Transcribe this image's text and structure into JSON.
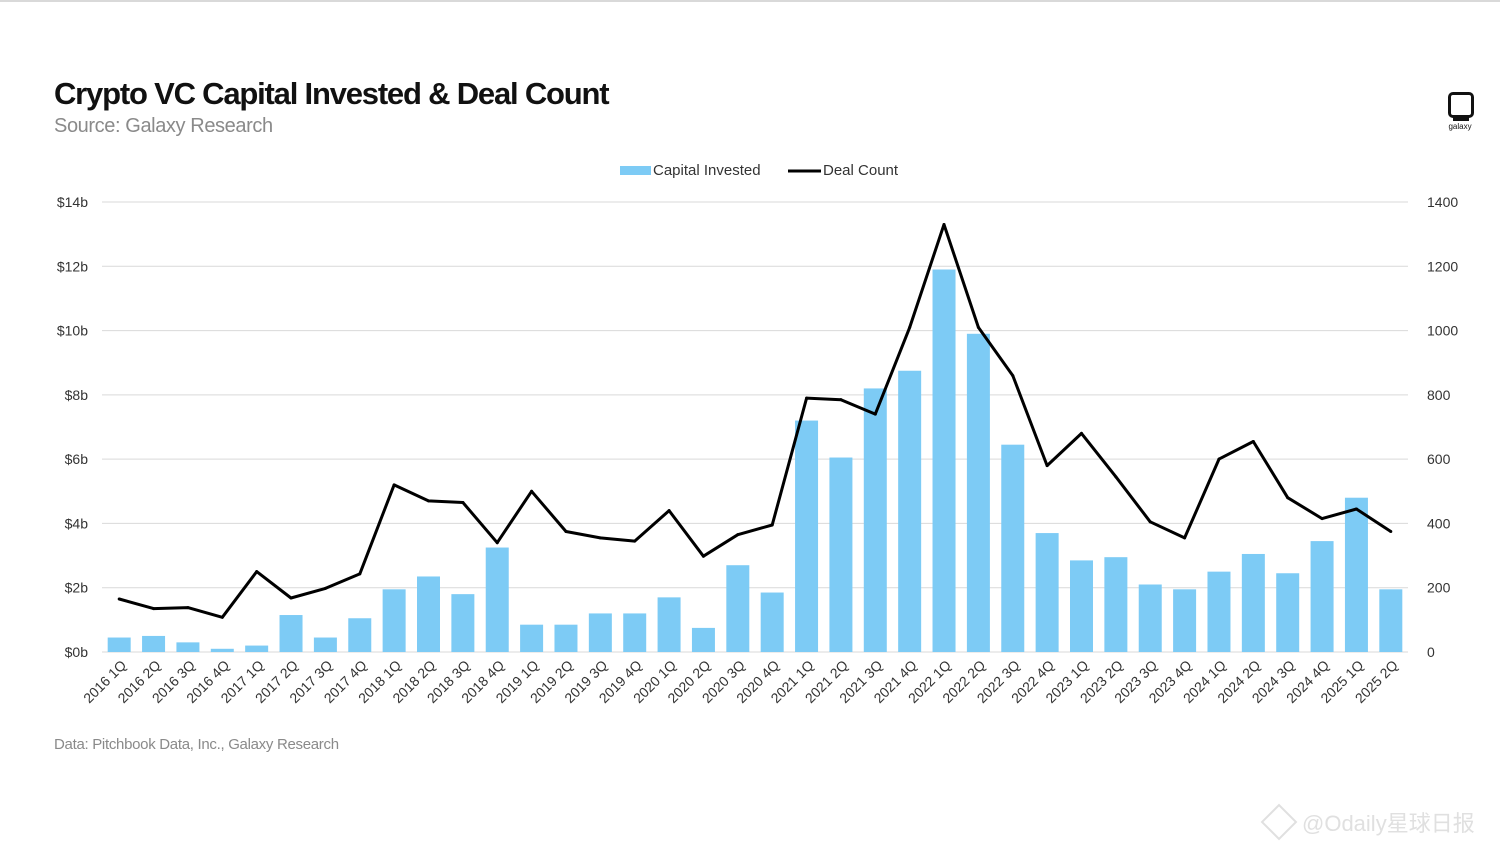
{
  "title": "Crypto VC Capital Invested & Deal Count",
  "subtitle": "Source: Galaxy Research",
  "footnote": "Data: Pitchbook Data, Inc., Galaxy Research",
  "logo": {
    "text": "galaxy",
    "icon": "galaxy-logo-icon"
  },
  "watermark": "@Odaily星球日报",
  "colors": {
    "bar": "#7dcbf5",
    "line": "#000000",
    "grid": "#d9d9d9"
  },
  "chart_data": {
    "type": "bar",
    "title": "Crypto VC Capital Invested & Deal Count",
    "legend": {
      "position": "top-center"
    },
    "grid": true,
    "categories": [
      "2016 1Q",
      "2016 2Q",
      "2016 3Q",
      "2016 4Q",
      "2017 1Q",
      "2017 2Q",
      "2017 3Q",
      "2017 4Q",
      "2018 1Q",
      "2018 2Q",
      "2018 3Q",
      "2018 4Q",
      "2019 1Q",
      "2019 2Q",
      "2019 3Q",
      "2019 4Q",
      "2020 1Q",
      "2020 2Q",
      "2020 3Q",
      "2020 4Q",
      "2021 1Q",
      "2021 2Q",
      "2021 3Q",
      "2021 4Q",
      "2022 1Q",
      "2022 2Q",
      "2022 3Q",
      "2022 4Q",
      "2023 1Q",
      "2023 2Q",
      "2023 3Q",
      "2023 4Q",
      "2024 1Q",
      "2024 2Q",
      "2024 3Q",
      "2024 4Q",
      "2025 1Q",
      "2025 2Q"
    ],
    "series": [
      {
        "name": "Capital Invested",
        "type": "bar",
        "axis": "left",
        "values": [
          0.45,
          0.5,
          0.3,
          0.1,
          0.2,
          1.15,
          0.45,
          1.05,
          1.95,
          2.35,
          1.8,
          3.25,
          0.85,
          0.85,
          1.2,
          1.2,
          1.7,
          0.75,
          2.7,
          1.85,
          7.2,
          6.05,
          8.2,
          8.75,
          11.9,
          9.9,
          6.45,
          3.7,
          2.85,
          2.95,
          2.1,
          1.95,
          2.5,
          3.05,
          2.45,
          3.45,
          4.8,
          1.95
        ]
      },
      {
        "name": "Deal Count",
        "type": "line",
        "axis": "right",
        "values": [
          165,
          135,
          138,
          108,
          250,
          168,
          198,
          243,
          520,
          470,
          465,
          340,
          500,
          375,
          355,
          345,
          440,
          298,
          365,
          395,
          790,
          785,
          740,
          1010,
          1330,
          1010,
          860,
          580,
          680,
          545,
          405,
          355,
          600,
          655,
          480,
          415,
          445,
          375
        ]
      }
    ],
    "y_left": {
      "ticks": [
        "$0b",
        "$2b",
        "$4b",
        "$6b",
        "$8b",
        "$10b",
        "$12b",
        "$14b"
      ],
      "range": [
        0,
        14
      ]
    },
    "y_right": {
      "ticks": [
        "0",
        "200",
        "400",
        "600",
        "800",
        "1000",
        "1200",
        "1400"
      ],
      "range": [
        0,
        1400
      ]
    }
  }
}
